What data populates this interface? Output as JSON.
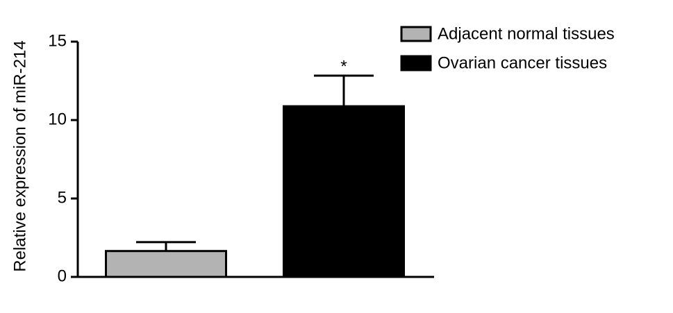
{
  "chart_data": {
    "type": "bar",
    "y_label": "Relative expression of miR-214",
    "series": [
      {
        "name": "Adjacent normal tissues",
        "color": "#b3b3b3",
        "values": [
          1.65
        ],
        "errors": [
          0.57
        ]
      },
      {
        "name": "Ovarian cancer tissues",
        "color": "#000000",
        "values": [
          10.88
        ],
        "errors": [
          1.95
        ]
      }
    ],
    "annotation": "*",
    "ylim": [
      0,
      15
    ],
    "yticks": [
      0,
      5,
      10,
      15
    ],
    "legend": "upper right"
  }
}
